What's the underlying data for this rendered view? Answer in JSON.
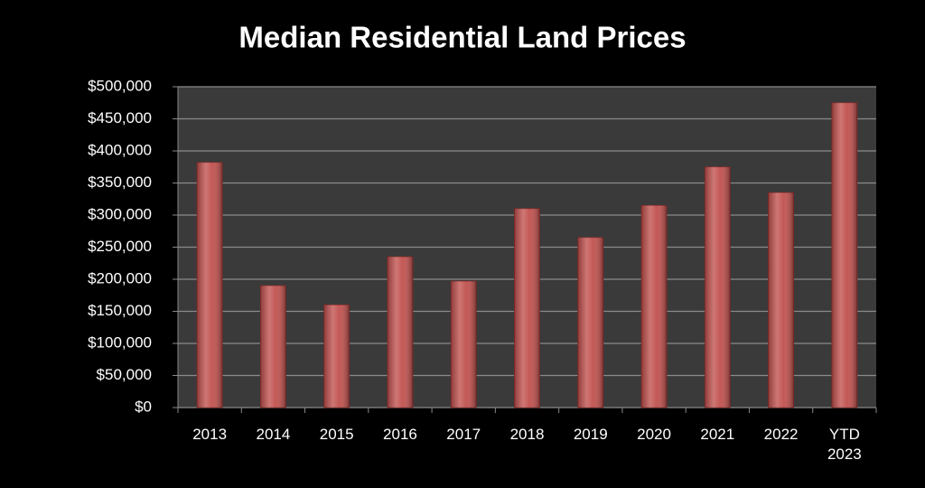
{
  "chart_data": {
    "type": "bar",
    "title": "Median Residential Land Prices",
    "categories": [
      "2013",
      "2014",
      "2015",
      "2016",
      "2017",
      "2018",
      "2019",
      "2020",
      "2021",
      "2022",
      "YTD 2023"
    ],
    "values": [
      382000,
      190000,
      160000,
      235000,
      197000,
      310000,
      265000,
      315000,
      375000,
      335000,
      475000
    ],
    "color": "#c0504d",
    "ylim": [
      0,
      500000
    ],
    "yticks": [
      {
        "value": 0,
        "label": "$0"
      },
      {
        "value": 50000,
        "label": "$50,000"
      },
      {
        "value": 100000,
        "label": "$100,000"
      },
      {
        "value": 150000,
        "label": "$150,000"
      },
      {
        "value": 200000,
        "label": "$200,000"
      },
      {
        "value": 250000,
        "label": "$250,000"
      },
      {
        "value": 300000,
        "label": "$300,000"
      },
      {
        "value": 350000,
        "label": "$350,000"
      },
      {
        "value": 400000,
        "label": "$400,000"
      },
      {
        "value": 450000,
        "label": "$450,000"
      },
      {
        "value": 500000,
        "label": "$500,000"
      }
    ],
    "grid": true
  }
}
